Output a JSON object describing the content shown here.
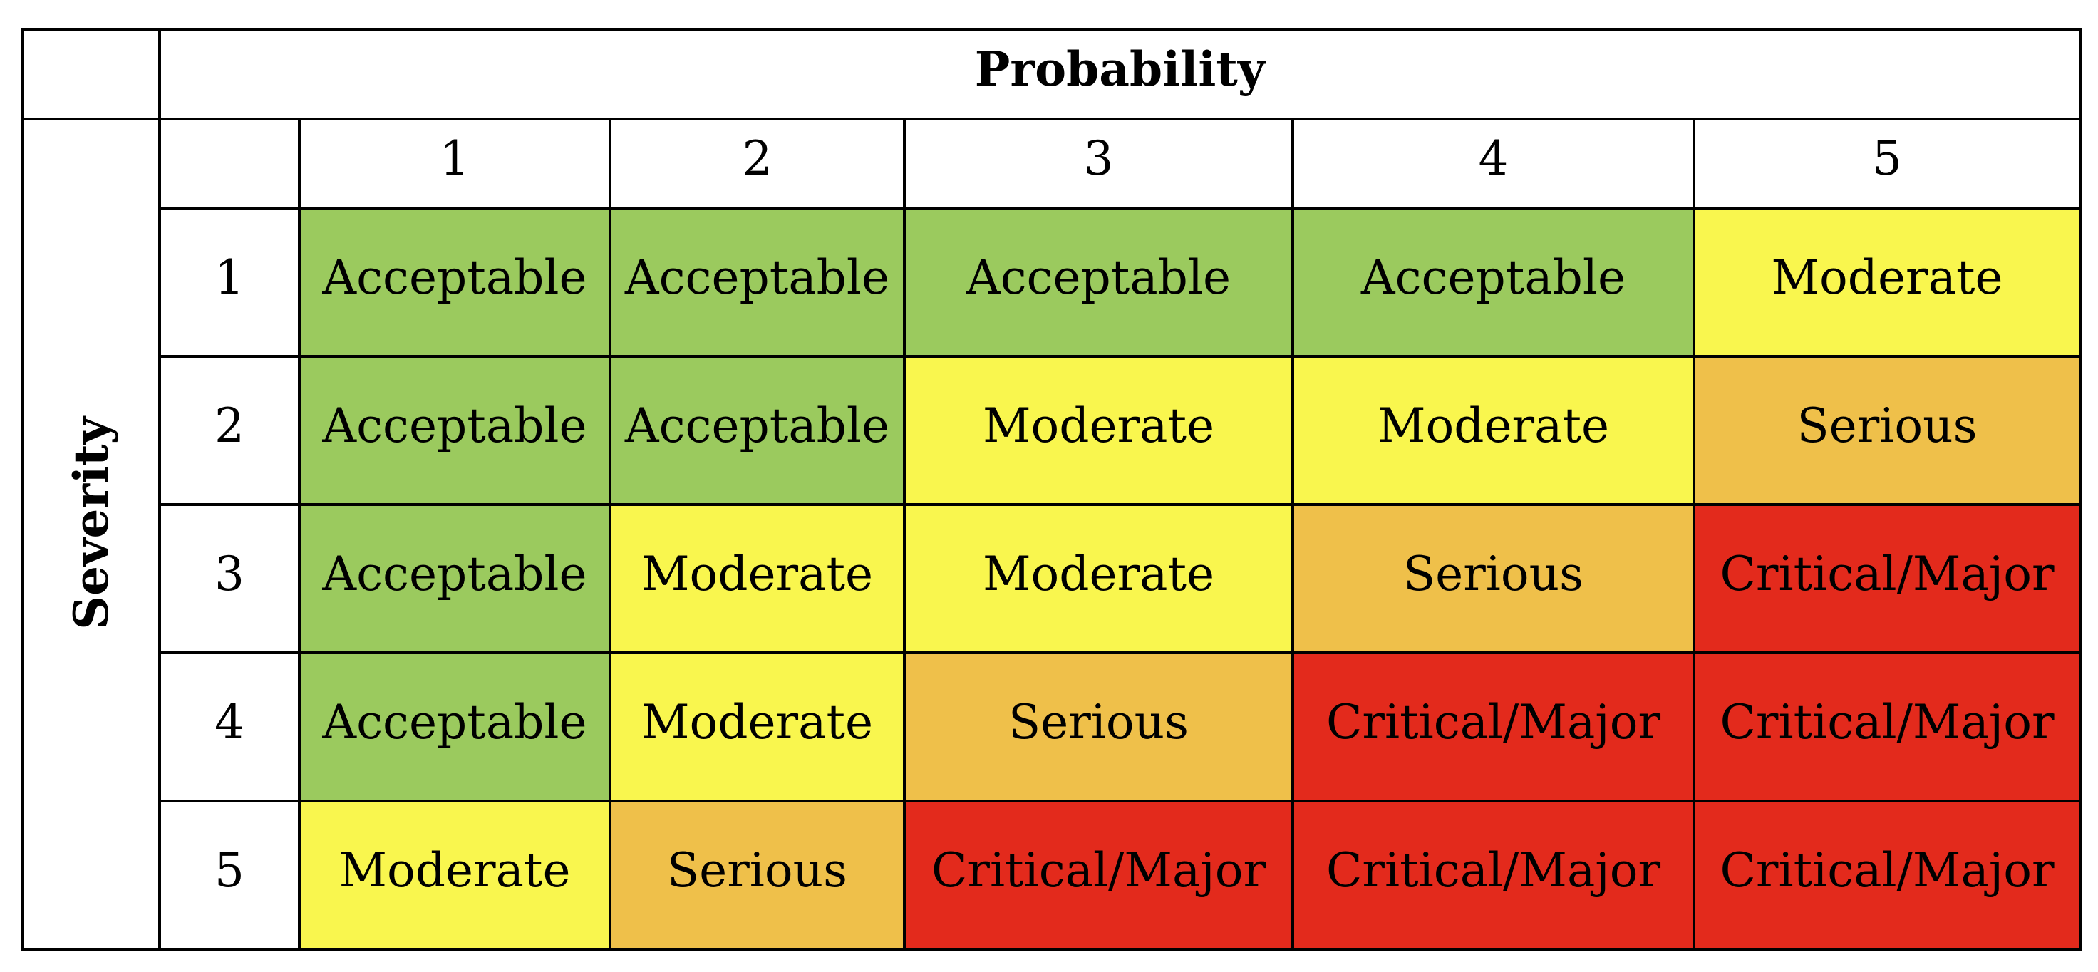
{
  "figure": {
    "probability_label": "Probability",
    "severity_label": "Severity",
    "column_headers": [
      "1",
      "2",
      "3",
      "4",
      "5"
    ],
    "row_headers": [
      "1",
      "2",
      "3",
      "4",
      "5"
    ],
    "levels": {
      "acceptable": {
        "label": "Acceptable",
        "color": "#9BCA5E"
      },
      "moderate": {
        "label": "Moderate",
        "color": "#F9F64E"
      },
      "serious": {
        "label": "Serious",
        "color": "#EFC04A"
      },
      "critical": {
        "label": "Critical/Major",
        "color": "#E32A1C"
      }
    },
    "grid_line_color": "#000000",
    "cells": [
      [
        "acceptable",
        "acceptable",
        "acceptable",
        "acceptable",
        "moderate"
      ],
      [
        "acceptable",
        "acceptable",
        "moderate",
        "moderate",
        "serious"
      ],
      [
        "acceptable",
        "moderate",
        "moderate",
        "serious",
        "critical"
      ],
      [
        "acceptable",
        "moderate",
        "serious",
        "critical",
        "critical"
      ],
      [
        "moderate",
        "serious",
        "critical",
        "critical",
        "critical"
      ]
    ]
  },
  "chart_data": {
    "type": "heatmap",
    "title": "",
    "xlabel": "Probability",
    "ylabel": "Severity",
    "x": [
      1,
      2,
      3,
      4,
      5
    ],
    "y": [
      1,
      2,
      3,
      4,
      5
    ],
    "values": [
      [
        "Acceptable",
        "Acceptable",
        "Acceptable",
        "Acceptable",
        "Moderate"
      ],
      [
        "Acceptable",
        "Acceptable",
        "Moderate",
        "Moderate",
        "Serious"
      ],
      [
        "Acceptable",
        "Moderate",
        "Moderate",
        "Serious",
        "Critical/Major"
      ],
      [
        "Acceptable",
        "Moderate",
        "Serious",
        "Critical/Major",
        "Critical/Major"
      ],
      [
        "Moderate",
        "Serious",
        "Critical/Major",
        "Critical/Major",
        "Critical/Major"
      ]
    ],
    "value_colors": {
      "Acceptable": "#9BCA5E",
      "Moderate": "#F9F64E",
      "Serious": "#EFC04A",
      "Critical/Major": "#E32A1C"
    },
    "grid": true,
    "legend_position": "none"
  }
}
